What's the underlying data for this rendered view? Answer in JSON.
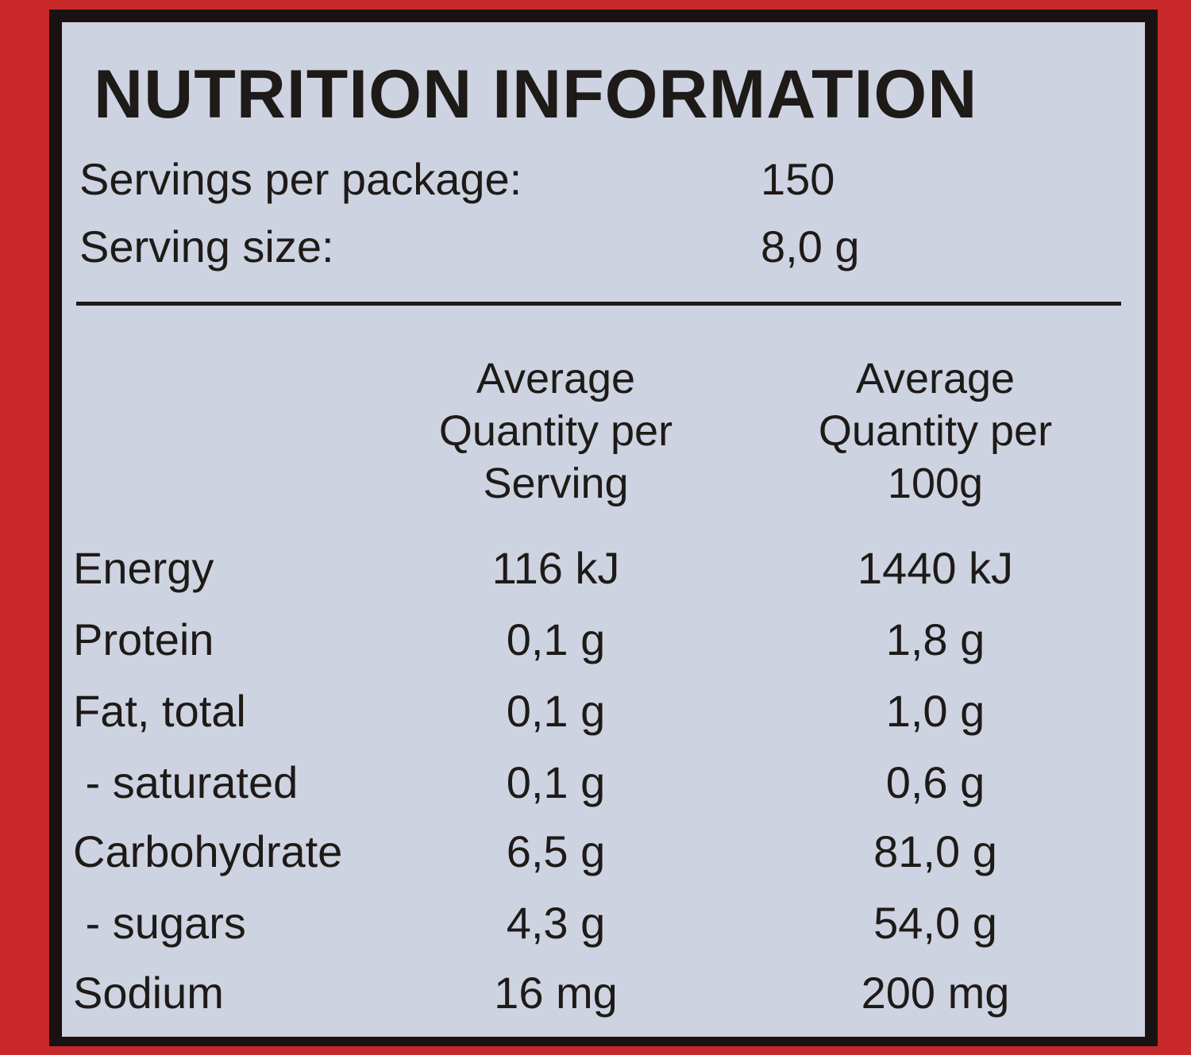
{
  "title": "NUTRITION INFORMATION",
  "servings": [
    {
      "label": "Servings per package:",
      "value": "150"
    },
    {
      "label": "Serving size:",
      "value": "8,0 g"
    }
  ],
  "table": {
    "header": [
      [
        "Average",
        "Quantity per",
        "Serving"
      ],
      [
        "Average",
        "Quantity per",
        "100g"
      ]
    ],
    "rows": [
      [
        "Energy",
        "116 kJ",
        "1440 kJ"
      ],
      [
        "Protein",
        "0,1 g",
        "1,8 g"
      ],
      [
        "Fat, total",
        "0,1 g",
        "1,0 g"
      ],
      [
        " - saturated",
        "0,1 g",
        "0,6 g"
      ],
      [
        "Carbohydrate",
        "6,5 g",
        "81,0 g"
      ],
      [
        " - sugars",
        "4,3 g",
        "54,0 g"
      ],
      [
        "Sodium",
        "16 mg",
        "200 mg"
      ]
    ]
  }
}
